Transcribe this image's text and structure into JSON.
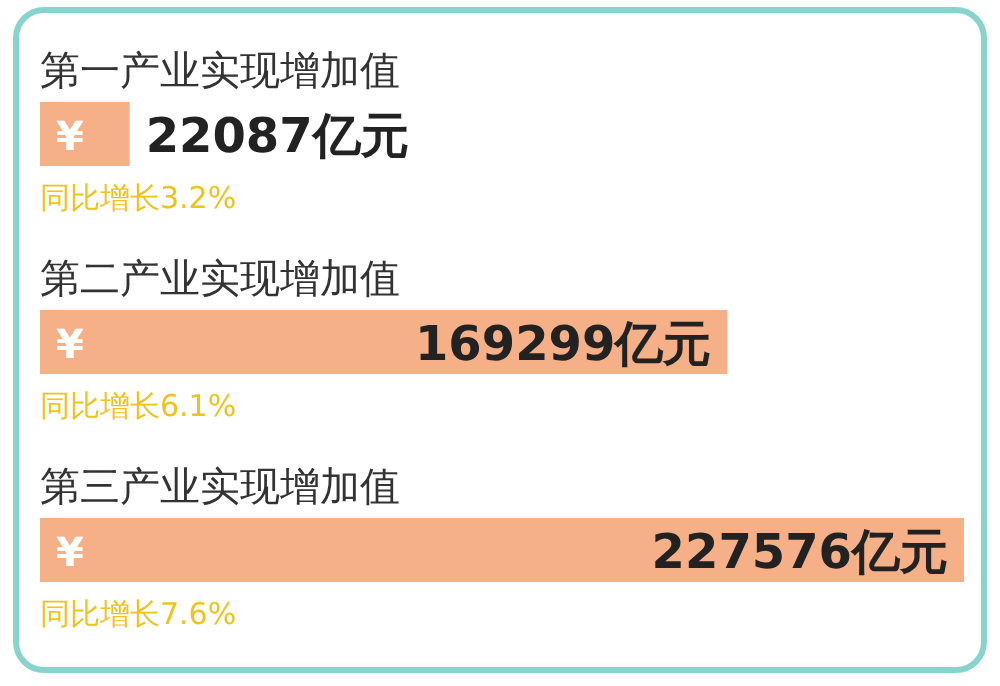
{
  "chart_data": {
    "type": "bar",
    "orientation": "horizontal",
    "categories": [
      "第一产业实现增加值",
      "第二产业实现增加值",
      "第三产业实现增加值"
    ],
    "values": [
      22087,
      169299,
      227576
    ],
    "value_labels": [
      "22087亿元",
      "169299亿元",
      "227576亿元"
    ],
    "color": "#f6b088",
    "annotations": [
      "¥",
      "¥",
      "¥",
      {
        "text": "同比增长3.2%",
        "y": "第一产业实现增加值"
      },
      {
        "text": "同比增长6.1%",
        "y": "第二产业实现增加值"
      },
      {
        "text": "同比增长7.6%",
        "y": "第三产业实现增加值"
      }
    ]
  }
}
